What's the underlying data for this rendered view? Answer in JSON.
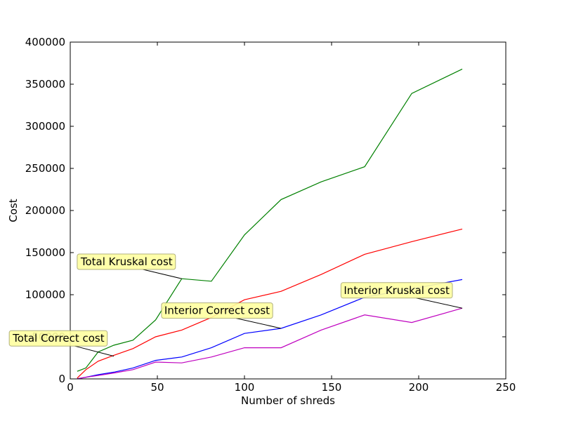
{
  "chart_data": {
    "type": "line",
    "title": "",
    "xlabel": "Number of shreds",
    "ylabel": "Cost",
    "xlim": [
      0,
      250
    ],
    "ylim": [
      0,
      400000
    ],
    "xticks": [
      0,
      50,
      100,
      150,
      200,
      250
    ],
    "xtick_labels": [
      "0",
      "50",
      "100",
      "150",
      "200",
      "250"
    ],
    "yticks": [
      0,
      50000,
      100000,
      150000,
      200000,
      250000,
      300000,
      350000,
      400000
    ],
    "ytick_labels": [
      "0",
      "50000",
      "100000",
      "150000",
      "200000",
      "250000",
      "300000",
      "350000",
      "400000"
    ],
    "grid": false,
    "series": [
      {
        "color": "#008000",
        "x": [
          4,
          9,
          16,
          25,
          36,
          49,
          64,
          81,
          100,
          121,
          144,
          169,
          196,
          225
        ],
        "values": [
          9000,
          13000,
          32000,
          40000,
          46000,
          70000,
          119000,
          116000,
          171000,
          213000,
          234000,
          252000,
          339000,
          368000
        ]
      },
      {
        "color": "#ff0000",
        "x": [
          4,
          9,
          16,
          25,
          36,
          49,
          64,
          81,
          100,
          121,
          144,
          169,
          196,
          225
        ],
        "values": [
          1000,
          11000,
          21000,
          28000,
          36000,
          50000,
          58000,
          73000,
          94000,
          104000,
          124000,
          148000,
          163000,
          178000
        ]
      },
      {
        "color": "#0000ff",
        "x": [
          4,
          9,
          16,
          25,
          36,
          49,
          64,
          81,
          100,
          121,
          144,
          169,
          196,
          225
        ],
        "values": [
          200,
          2000,
          5000,
          8000,
          13000,
          22000,
          26000,
          37000,
          54000,
          60000,
          76000,
          97000,
          107000,
          118000
        ]
      },
      {
        "color": "#bf00bf",
        "x": [
          4,
          9,
          16,
          25,
          36,
          49,
          64,
          81,
          100,
          121,
          144,
          169,
          196,
          225
        ],
        "values": [
          200,
          2000,
          4000,
          7000,
          11000,
          20000,
          19000,
          26000,
          37000,
          37000,
          58000,
          76000,
          67000,
          84000
        ]
      }
    ],
    "annotations": [
      {
        "text": "Total Kruskal cost",
        "point": [
          64,
          119000
        ],
        "text_pos": [
          6,
          135000
        ]
      },
      {
        "text": "Interior Correct cost",
        "point": [
          121,
          60000
        ],
        "text_pos": [
          54,
          77000
        ]
      },
      {
        "text": "Total Correct cost",
        "point": [
          25,
          27000
        ],
        "text_pos": [
          -33,
          44000
        ]
      },
      {
        "text": "Interior Kruskal cost",
        "point": [
          225,
          84000
        ],
        "text_pos": [
          157,
          101000
        ]
      }
    ]
  }
}
